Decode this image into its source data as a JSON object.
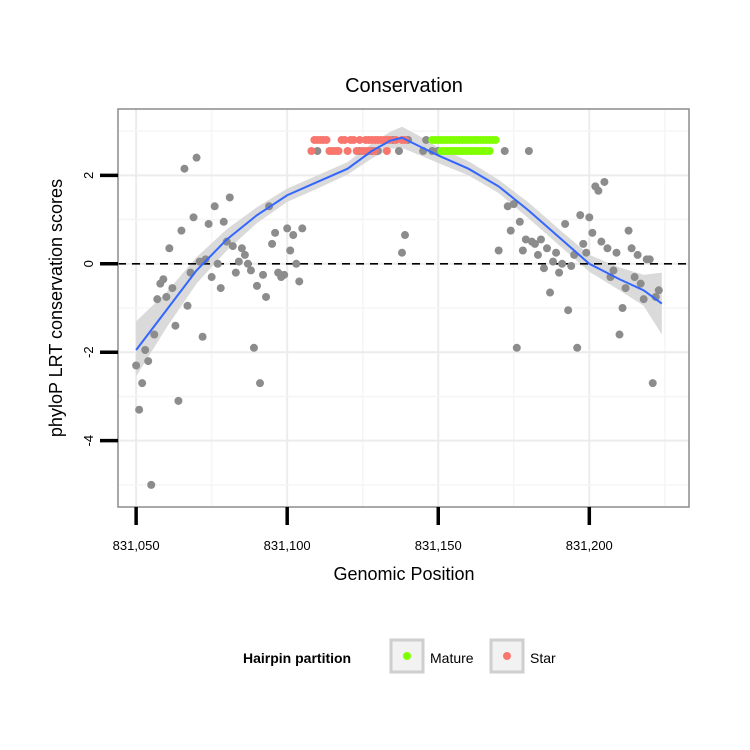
{
  "chart_data": {
    "type": "scatter",
    "title": "Conservation",
    "xlabel": "Genomic Position",
    "ylabel": "phyloP LRT conservation scores",
    "xlim": [
      831044,
      831233
    ],
    "ylim": [
      -5.5,
      3.5
    ],
    "x_ticks": [
      831050,
      831100,
      831150,
      831200
    ],
    "x_tick_labels": [
      "831,050",
      "831,100",
      "831,150",
      "831,200"
    ],
    "y_ticks": [
      -4,
      -2,
      0,
      2
    ],
    "y_tick_labels": [
      "-4",
      "-2",
      "0",
      "2"
    ],
    "reference_line": {
      "y": 0,
      "style": "dashed"
    },
    "grid": true,
    "legend": {
      "title": "Hairpin partition",
      "placement": "bottom",
      "entries": [
        {
          "label": "Mature",
          "color": "#7FFF00"
        },
        {
          "label": "Star",
          "color": "#F8766D"
        }
      ]
    },
    "colors": {
      "other": "#8c8c8c",
      "mature": "#7FFF00",
      "star": "#F8766D",
      "smooth_line": "#3366FF",
      "ribbon": "#d6d6d6"
    },
    "series": [
      {
        "group": "other",
        "points": [
          [
            831050,
            -2.3
          ],
          [
            831051,
            -3.3
          ],
          [
            831052,
            -2.7
          ],
          [
            831053,
            -1.95
          ],
          [
            831054,
            -2.2
          ],
          [
            831055,
            -5.0
          ],
          [
            831056,
            -1.6
          ],
          [
            831057,
            -0.8
          ],
          [
            831058,
            -0.45
          ],
          [
            831059,
            -0.35
          ],
          [
            831060,
            -0.75
          ],
          [
            831061,
            0.35
          ],
          [
            831062,
            -0.55
          ],
          [
            831063,
            -1.4
          ],
          [
            831064,
            -3.1
          ],
          [
            831065,
            0.75
          ],
          [
            831066,
            2.15
          ],
          [
            831067,
            -0.95
          ],
          [
            831068,
            -0.2
          ],
          [
            831069,
            1.05
          ],
          [
            831070,
            2.4
          ],
          [
            831071,
            0.05
          ],
          [
            831072,
            -1.65
          ],
          [
            831073,
            0.1
          ],
          [
            831074,
            0.9
          ],
          [
            831075,
            -0.3
          ],
          [
            831076,
            1.3
          ],
          [
            831077,
            0.0
          ],
          [
            831078,
            -0.55
          ],
          [
            831079,
            0.95
          ],
          [
            831080,
            0.5
          ],
          [
            831081,
            1.5
          ],
          [
            831082,
            0.4
          ],
          [
            831083,
            -0.2
          ],
          [
            831084,
            0.05
          ],
          [
            831085,
            0.35
          ],
          [
            831086,
            0.2
          ],
          [
            831087,
            0.0
          ],
          [
            831088,
            -0.15
          ],
          [
            831089,
            -1.9
          ],
          [
            831090,
            -0.5
          ],
          [
            831091,
            -2.7
          ],
          [
            831092,
            -0.25
          ],
          [
            831093,
            -0.75
          ],
          [
            831094,
            1.3
          ],
          [
            831095,
            0.45
          ],
          [
            831096,
            0.7
          ],
          [
            831097,
            -0.2
          ],
          [
            831098,
            -0.3
          ],
          [
            831099,
            -0.25
          ],
          [
            831100,
            0.8
          ],
          [
            831101,
            0.3
          ],
          [
            831102,
            0.65
          ],
          [
            831103,
            0.0
          ],
          [
            831104,
            -0.4
          ],
          [
            831105,
            0.8
          ],
          [
            831110,
            2.55
          ],
          [
            831124,
            2.55
          ],
          [
            831128,
            2.55
          ],
          [
            831130,
            2.55
          ],
          [
            831135,
            2.8
          ],
          [
            831137,
            2.55
          ],
          [
            831138,
            0.25
          ],
          [
            831139,
            0.65
          ],
          [
            831140,
            2.8
          ],
          [
            831145,
            2.55
          ],
          [
            831146,
            2.8
          ],
          [
            831148,
            2.55
          ],
          [
            831150,
            2.55
          ],
          [
            831170,
            0.3
          ],
          [
            831172,
            2.55
          ],
          [
            831173,
            1.3
          ],
          [
            831174,
            0.75
          ],
          [
            831175,
            1.35
          ],
          [
            831176,
            -1.9
          ],
          [
            831177,
            0.95
          ],
          [
            831178,
            0.3
          ],
          [
            831179,
            0.55
          ],
          [
            831180,
            2.55
          ],
          [
            831181,
            0.5
          ],
          [
            831182,
            0.45
          ],
          [
            831183,
            0.2
          ],
          [
            831184,
            0.55
          ],
          [
            831185,
            -0.1
          ],
          [
            831186,
            0.35
          ],
          [
            831187,
            -0.65
          ],
          [
            831188,
            0.05
          ],
          [
            831189,
            0.25
          ],
          [
            831190,
            -0.2
          ],
          [
            831191,
            0.0
          ],
          [
            831192,
            0.9
          ],
          [
            831193,
            -1.05
          ],
          [
            831194,
            -0.05
          ],
          [
            831195,
            0.2
          ],
          [
            831196,
            -1.9
          ],
          [
            831197,
            1.1
          ],
          [
            831198,
            0.45
          ],
          [
            831199,
            0.25
          ],
          [
            831200,
            1.05
          ],
          [
            831201,
            0.7
          ],
          [
            831202,
            1.75
          ],
          [
            831203,
            1.65
          ],
          [
            831204,
            0.5
          ],
          [
            831205,
            1.85
          ],
          [
            831206,
            0.35
          ],
          [
            831207,
            -0.3
          ],
          [
            831208,
            -0.15
          ],
          [
            831209,
            0.25
          ],
          [
            831210,
            -1.6
          ],
          [
            831211,
            -1.0
          ],
          [
            831212,
            -0.55
          ],
          [
            831213,
            0.75
          ],
          [
            831214,
            0.35
          ],
          [
            831215,
            -0.3
          ],
          [
            831216,
            0.2
          ],
          [
            831217,
            -0.45
          ],
          [
            831218,
            -0.8
          ],
          [
            831219,
            0.1
          ],
          [
            831220,
            0.1
          ],
          [
            831221,
            -2.7
          ],
          [
            831222,
            -0.75
          ],
          [
            831223,
            -0.6
          ]
        ]
      },
      {
        "group": "star",
        "name": "Star",
        "points": [
          [
            831109,
            2.8
          ],
          [
            831110,
            2.8
          ],
          [
            831111,
            2.8
          ],
          [
            831112,
            2.8
          ],
          [
            831113,
            2.8
          ],
          [
            831114,
            2.55
          ],
          [
            831115,
            2.55
          ],
          [
            831116,
            2.55
          ],
          [
            831117,
            2.55
          ],
          [
            831118,
            2.8
          ],
          [
            831119,
            2.8
          ],
          [
            831120,
            2.55
          ],
          [
            831121,
            2.8
          ],
          [
            831122,
            2.8
          ],
          [
            831123,
            2.55
          ],
          [
            831124,
            2.8
          ],
          [
            831125,
            2.55
          ],
          [
            831126,
            2.8
          ],
          [
            831127,
            2.8
          ],
          [
            831128,
            2.8
          ],
          [
            831129,
            2.8
          ],
          [
            831130,
            2.8
          ],
          [
            831131,
            2.8
          ],
          [
            831132,
            2.8
          ],
          [
            831133,
            2.8
          ],
          [
            831134,
            2.8
          ],
          [
            831136,
            2.8
          ],
          [
            831138,
            2.8
          ],
          [
            831139,
            2.8
          ],
          [
            831108,
            2.55
          ],
          [
            831126,
            2.55
          ],
          [
            831127,
            2.55
          ],
          [
            831129,
            2.55
          ],
          [
            831133,
            2.55
          ]
        ]
      },
      {
        "group": "mature",
        "name": "Mature",
        "points": [
          [
            831148,
            2.8
          ],
          [
            831149,
            2.8
          ],
          [
            831150,
            2.8
          ],
          [
            831151,
            2.8
          ],
          [
            831152,
            2.8
          ],
          [
            831153,
            2.8
          ],
          [
            831154,
            2.8
          ],
          [
            831155,
            2.8
          ],
          [
            831156,
            2.8
          ],
          [
            831157,
            2.8
          ],
          [
            831158,
            2.8
          ],
          [
            831159,
            2.8
          ],
          [
            831160,
            2.8
          ],
          [
            831161,
            2.8
          ],
          [
            831162,
            2.8
          ],
          [
            831163,
            2.8
          ],
          [
            831164,
            2.8
          ],
          [
            831165,
            2.8
          ],
          [
            831166,
            2.8
          ],
          [
            831167,
            2.8
          ],
          [
            831168,
            2.8
          ],
          [
            831169,
            2.8
          ],
          [
            831151,
            2.55
          ],
          [
            831152,
            2.55
          ],
          [
            831153,
            2.55
          ],
          [
            831154,
            2.55
          ],
          [
            831155,
            2.55
          ],
          [
            831156,
            2.55
          ],
          [
            831157,
            2.55
          ],
          [
            831158,
            2.55
          ],
          [
            831159,
            2.55
          ],
          [
            831160,
            2.55
          ],
          [
            831161,
            2.55
          ],
          [
            831162,
            2.55
          ],
          [
            831163,
            2.55
          ],
          [
            831164,
            2.55
          ],
          [
            831165,
            2.55
          ],
          [
            831166,
            2.55
          ],
          [
            831167,
            2.55
          ]
        ]
      }
    ],
    "smooth": {
      "x": [
        831050,
        831060,
        831070,
        831080,
        831090,
        831100,
        831110,
        831120,
        831128,
        831134,
        831138,
        831144,
        831150,
        831160,
        831170,
        831180,
        831190,
        831200,
        831210,
        831218,
        831224
      ],
      "y": [
        -1.95,
        -1.05,
        -0.15,
        0.55,
        1.1,
        1.55,
        1.85,
        2.15,
        2.55,
        2.78,
        2.85,
        2.65,
        2.45,
        2.15,
        1.75,
        1.2,
        0.6,
        0.0,
        -0.35,
        -0.6,
        -0.9
      ],
      "ribbon_low": [
        -2.55,
        -1.45,
        -0.45,
        0.3,
        0.92,
        1.4,
        1.7,
        2.02,
        2.38,
        2.6,
        2.62,
        2.45,
        2.28,
        2.0,
        1.6,
        1.02,
        0.42,
        -0.18,
        -0.6,
        -0.95,
        -1.6
      ],
      "ribbon_high": [
        -1.3,
        -0.65,
        0.15,
        0.78,
        1.28,
        1.7,
        2.0,
        2.3,
        2.72,
        2.98,
        3.1,
        2.88,
        2.63,
        2.32,
        1.9,
        1.38,
        0.78,
        0.2,
        -0.08,
        -0.25,
        -0.2
      ]
    }
  }
}
